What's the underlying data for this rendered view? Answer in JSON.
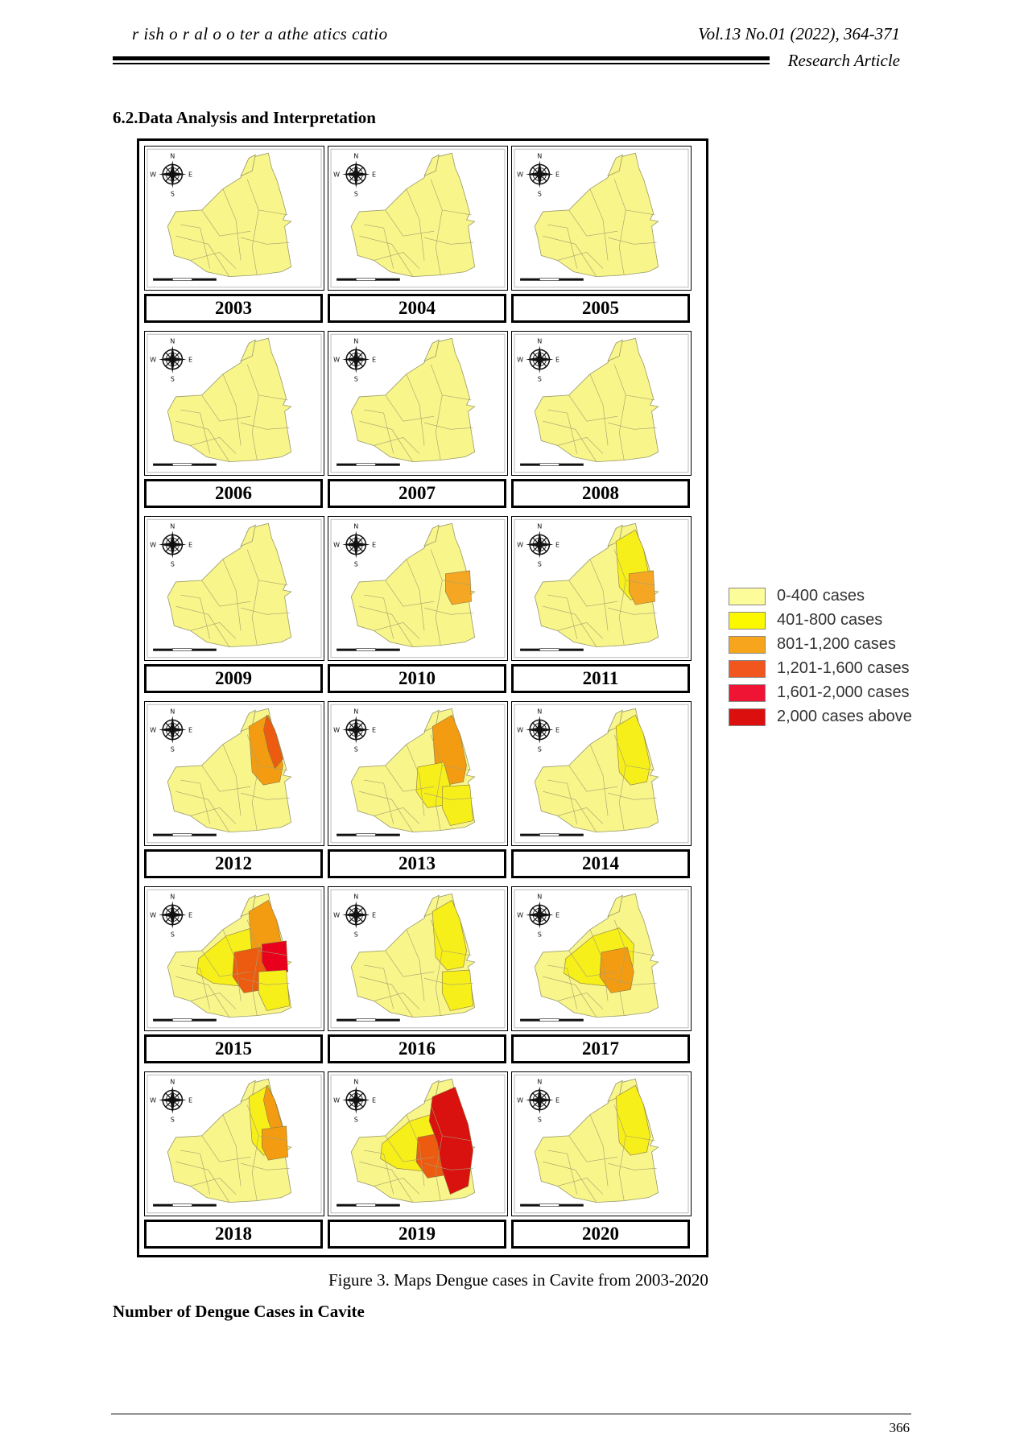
{
  "header": {
    "journal": "r ish o r al o o ter a athe atics catio",
    "volume": "Vol.13 No.01 (2022), 364-371",
    "article_type": "Research Article"
  },
  "section_title": "6.2.Data Analysis and Interpretation",
  "figure": {
    "compass": {
      "n": "N",
      "s": "S",
      "e": "E",
      "w": "W"
    },
    "maps": [
      {
        "year": "2003",
        "main": "#f8f58a",
        "spots": []
      },
      {
        "year": "2004",
        "main": "#f8f58a",
        "spots": []
      },
      {
        "year": "2005",
        "main": "#f8f58a",
        "spots": []
      },
      {
        "year": "2006",
        "main": "#f8f58a",
        "spots": []
      },
      {
        "year": "2007",
        "main": "#f8f58a",
        "spots": []
      },
      {
        "year": "2008",
        "main": "#f8f58a",
        "spots": []
      },
      {
        "year": "2009",
        "main": "#f8f58a",
        "spots": []
      },
      {
        "year": "2010",
        "main": "#f8f58a",
        "spots": [
          {
            "shape": "ne",
            "color": "#f5a623"
          }
        ]
      },
      {
        "year": "2011",
        "main": "#f8f58a",
        "spots": [
          {
            "shape": "nstrip",
            "color": "#f7ef1a"
          },
          {
            "shape": "ne",
            "color": "#f5a623"
          }
        ]
      },
      {
        "year": "2012",
        "main": "#f8f58a",
        "spots": [
          {
            "shape": "nstrip",
            "color": "#f39c12"
          },
          {
            "shape": "nedge",
            "color": "#ec5b10"
          }
        ]
      },
      {
        "year": "2013",
        "main": "#f8f58a",
        "spots": [
          {
            "shape": "nstrip",
            "color": "#f39c12"
          },
          {
            "shape": "center",
            "color": "#f7ef1a"
          },
          {
            "shape": "se",
            "color": "#f7ef1a"
          }
        ]
      },
      {
        "year": "2014",
        "main": "#f8f58a",
        "spots": [
          {
            "shape": "nstrip",
            "color": "#f7ef1a"
          }
        ]
      },
      {
        "year": "2015",
        "main": "#f8f58a",
        "spots": [
          {
            "shape": "wide",
            "color": "#f7ef1a"
          },
          {
            "shape": "nstrip",
            "color": "#f39c12"
          },
          {
            "shape": "center",
            "color": "#ec5b10"
          },
          {
            "shape": "ne",
            "color": "#e8001c"
          },
          {
            "shape": "se",
            "color": "#f7ef1a"
          }
        ]
      },
      {
        "year": "2016",
        "main": "#f8f58a",
        "spots": [
          {
            "shape": "nstrip",
            "color": "#f7ef1a"
          },
          {
            "shape": "se",
            "color": "#f7ef1a"
          }
        ]
      },
      {
        "year": "2017",
        "main": "#f8f58a",
        "spots": [
          {
            "shape": "wide",
            "color": "#f7ef1a"
          },
          {
            "shape": "center",
            "color": "#f39c12"
          }
        ]
      },
      {
        "year": "2018",
        "main": "#f8f58a",
        "spots": [
          {
            "shape": "nstrip",
            "color": "#f7ef1a"
          },
          {
            "shape": "nedge",
            "color": "#f39c12"
          },
          {
            "shape": "ne",
            "color": "#f39c12"
          }
        ]
      },
      {
        "year": "2019",
        "main": "#f8f58a",
        "spots": [
          {
            "shape": "wide",
            "color": "#f7ef1a"
          },
          {
            "shape": "center",
            "color": "#ec5b10"
          },
          {
            "shape": "bigred",
            "color": "#d9110f"
          }
        ]
      },
      {
        "year": "2020",
        "main": "#f8f58a",
        "spots": [
          {
            "shape": "nstrip",
            "color": "#f7ef1a"
          }
        ]
      }
    ],
    "caption": "Figure 3. Maps Dengue cases in Cavite from 2003-2020"
  },
  "legend": [
    {
      "label": "0-400 cases",
      "color": "#fdfc9a"
    },
    {
      "label": "401-800 cases",
      "color": "#fbf800"
    },
    {
      "label": "801-1,200 cases",
      "color": "#f6a51c"
    },
    {
      "label": "1,201-1,600 cases",
      "color": "#f0561e"
    },
    {
      "label": "1,601-2,000 cases",
      "color": "#ef1334"
    },
    {
      "label": "2,000 cases above",
      "color": "#dc0f0f"
    }
  ],
  "subheading": "Number of Dengue Cases in Cavite",
  "page_number": "366"
}
